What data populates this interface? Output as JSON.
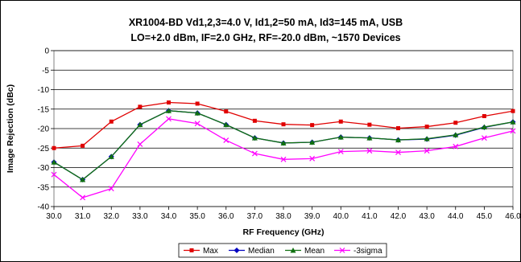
{
  "chart_data": {
    "type": "line",
    "title_line1": "XR1004-BD Vd1,2,3=4.0 V, Id1,2=50 mA, Id3=145 mA, USB",
    "title_line2": "LO=+2.0 dBm, IF=2.0 GHz, RF=-20.0 dBm, ~1570 Devices",
    "xlabel": "RF Frequency (GHz)",
    "ylabel": "Image Rejection (dBc)",
    "xlim": [
      30,
      46
    ],
    "ylim": [
      -40,
      0
    ],
    "x_ticks": [
      "30.0",
      "31.0",
      "32.0",
      "33.0",
      "34.0",
      "35.0",
      "36.0",
      "37.0",
      "38.0",
      "39.0",
      "40.0",
      "41.0",
      "42.0",
      "43.0",
      "44.0",
      "45.0",
      "46.0"
    ],
    "y_ticks": [
      "0",
      "-5",
      "-10",
      "-15",
      "-20",
      "-25",
      "-30",
      "-35",
      "-40"
    ],
    "y_tick_values": [
      0,
      -5,
      -10,
      -15,
      -20,
      -25,
      -30,
      -35,
      -40
    ],
    "grid": "horizontal",
    "legend_position": "bottom",
    "x": [
      30,
      31,
      32,
      33,
      34,
      35,
      36,
      37,
      38,
      39,
      40,
      41,
      42,
      43,
      44,
      45,
      46
    ],
    "series": [
      {
        "name": "Max",
        "color": "#e00000",
        "marker": "square",
        "values": [
          -25.0,
          -24.4,
          -18.2,
          -14.4,
          -13.3,
          -13.6,
          -15.6,
          -18.0,
          -18.9,
          -19.1,
          -18.2,
          -19.0,
          -19.9,
          -19.5,
          -18.5,
          -16.8,
          -15.5
        ]
      },
      {
        "name": "Median",
        "color": "#0000c0",
        "marker": "diamond",
        "values": [
          -28.6,
          -33.1,
          -27.2,
          -19.0,
          -15.4,
          -16.0,
          -19.0,
          -22.4,
          -23.7,
          -23.5,
          -22.2,
          -22.4,
          -22.9,
          -22.7,
          -21.7,
          -19.7,
          -18.3
        ]
      },
      {
        "name": "Mean",
        "color": "#107010",
        "marker": "triangle",
        "values": [
          -28.6,
          -33.1,
          -27.2,
          -19.0,
          -15.4,
          -16.0,
          -19.0,
          -22.4,
          -23.7,
          -23.5,
          -22.2,
          -22.4,
          -22.9,
          -22.6,
          -21.6,
          -19.6,
          -18.3
        ]
      },
      {
        "name": "-3sigma",
        "color": "#ff00ff",
        "marker": "x",
        "values": [
          -31.8,
          -37.7,
          -35.4,
          -24.0,
          -17.5,
          -18.7,
          -23.0,
          -26.4,
          -27.9,
          -27.7,
          -25.9,
          -25.7,
          -26.1,
          -25.7,
          -24.6,
          -22.4,
          -20.6
        ]
      }
    ]
  }
}
